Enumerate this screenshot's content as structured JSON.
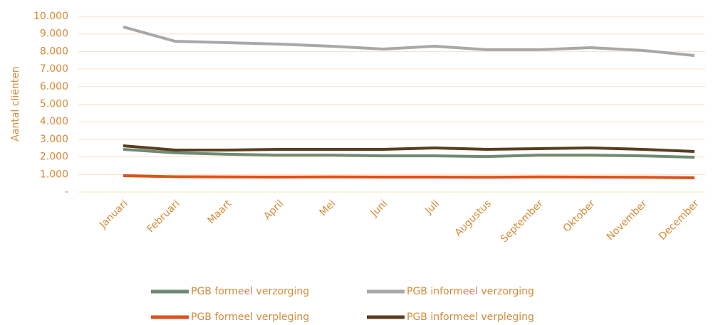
{
  "chart_data": {
    "type": "line",
    "y_label": "Aantal cliënten",
    "categories": [
      "Januari",
      "Februari",
      "Maart",
      "April",
      "Mei",
      "Juni",
      "Juli",
      "Augustus",
      "September",
      "Oktober",
      "November",
      "December"
    ],
    "series": [
      {
        "name": "PGB formeel verzorging",
        "color": "#6e8b74",
        "values": [
          2430,
          2230,
          2150,
          2100,
          2100,
          2060,
          2060,
          2020,
          2100,
          2100,
          2060,
          1980
        ]
      },
      {
        "name": "PGB informeel verzorging",
        "color": "#a8a8a8",
        "values": [
          9400,
          8580,
          8500,
          8420,
          8300,
          8140,
          8300,
          8100,
          8100,
          8220,
          8060,
          7770
        ]
      },
      {
        "name": "PGB formeel verpleging",
        "color": "#d9531e",
        "values": [
          930,
          870,
          860,
          850,
          860,
          850,
          850,
          840,
          860,
          850,
          840,
          810
        ]
      },
      {
        "name": "PGB informeel verpleging",
        "color": "#5a3d1f",
        "values": [
          2630,
          2390,
          2390,
          2430,
          2430,
          2430,
          2510,
          2430,
          2470,
          2510,
          2430,
          2310
        ]
      }
    ],
    "ylim": [
      0,
      10000
    ],
    "yticks": [
      {
        "value": 0,
        "label": "-"
      },
      {
        "value": 1000,
        "label": "1.000"
      },
      {
        "value": 2000,
        "label": "2.000"
      },
      {
        "value": 3000,
        "label": "3.000"
      },
      {
        "value": 4000,
        "label": "4.000"
      },
      {
        "value": 5000,
        "label": "5.000"
      },
      {
        "value": 6000,
        "label": "6.000"
      },
      {
        "value": 7000,
        "label": "7.000"
      },
      {
        "value": 8000,
        "label": "8.000"
      },
      {
        "value": 9000,
        "label": "9.000"
      },
      {
        "value": 10000,
        "label": "10.000"
      }
    ],
    "grid": true,
    "legend": "bottom"
  }
}
